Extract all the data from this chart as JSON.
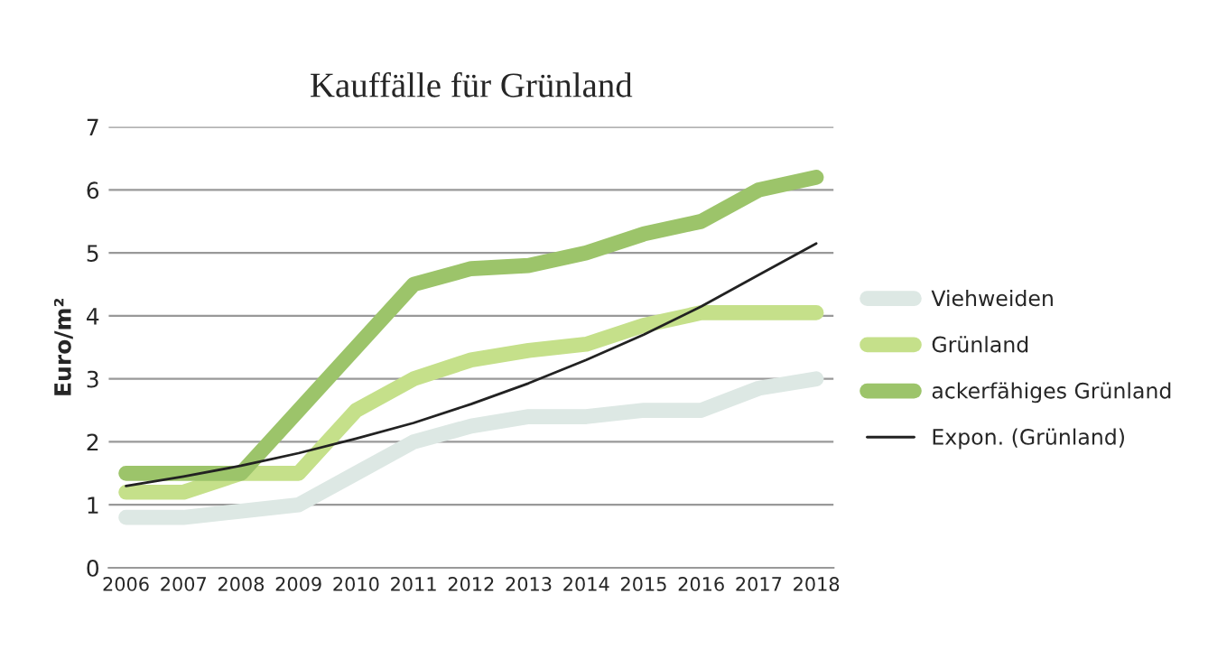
{
  "chart_data": {
    "type": "line",
    "title": "Kauffälle für Grünland",
    "ylabel": "Euro/m²",
    "categories": [
      "2006",
      "2007",
      "2008",
      "2009",
      "2010",
      "2011",
      "2012",
      "2013",
      "2014",
      "2015",
      "2016",
      "2017",
      "2018"
    ],
    "series": [
      {
        "name": "Viehweiden",
        "color": "#dde8e4",
        "values": [
          0.8,
          0.8,
          0.9,
          1.0,
          1.5,
          2.0,
          2.25,
          2.4,
          2.4,
          2.5,
          2.5,
          2.85,
          3.0
        ]
      },
      {
        "name": "Grünland",
        "color": "#c5e08a",
        "values": [
          1.2,
          1.2,
          1.5,
          1.5,
          2.5,
          3.0,
          3.3,
          3.45,
          3.55,
          3.85,
          4.05,
          4.05,
          4.05
        ]
      },
      {
        "name": "ackerfähiges Grünland",
        "color": "#9cc46a",
        "values": [
          1.5,
          1.5,
          1.5,
          2.5,
          3.5,
          4.5,
          4.75,
          4.8,
          5.0,
          5.3,
          5.5,
          6.0,
          6.2
        ]
      },
      {
        "name": "Expon. (Grünland)",
        "color": "#222222",
        "values": [
          1.3,
          1.45,
          1.62,
          1.82,
          2.05,
          2.3,
          2.6,
          2.93,
          3.3,
          3.7,
          4.15,
          4.65,
          5.15
        ]
      }
    ],
    "ylim": [
      0,
      7
    ],
    "yticks": [
      0,
      1,
      2,
      3,
      4,
      5,
      6,
      7
    ],
    "grid": "y",
    "legend": "right",
    "marker": "none",
    "line_style": "solid"
  }
}
